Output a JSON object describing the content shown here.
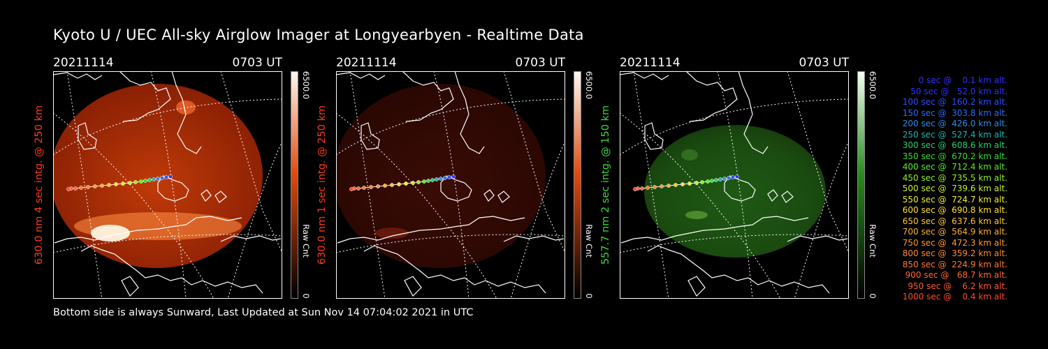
{
  "title": "Kyoto U / UEC All-sky Airglow Imager at Longyearbyen - Realtime Data",
  "footer": "Bottom side is always Sunward, Last Updated at Sun Nov 14 07:04:02 2021 in UTC",
  "panels": [
    {
      "date": "20211114",
      "time": "0703 UT",
      "ylabel": "630.0 nm 4 sec intg. @ 250 km",
      "ylabel_color": "#ff3a1a",
      "cbar_max": "6500.0",
      "cbar_label": "Raw Cnt",
      "cbar_min": "0",
      "tint": "red",
      "intensity": 0.85
    },
    {
      "date": "20211114",
      "time": "0703 UT",
      "ylabel": "630.0 nm 1 sec intg. @ 250 km",
      "ylabel_color": "#ff3a1a",
      "cbar_max": "6500.0",
      "cbar_label": "Raw Cnt",
      "cbar_min": "0",
      "tint": "red",
      "intensity": 0.25
    },
    {
      "date": "20211114",
      "time": "0703 UT",
      "ylabel": "557.7 nm 2 sec intg. @ 150 km",
      "ylabel_color": "#3cdc3c",
      "cbar_max": "6500.0",
      "cbar_label": "Raw Cnt",
      "cbar_min": "0",
      "tint": "green",
      "intensity": 0.5
    }
  ],
  "legend": [
    {
      "text": "   0 sec @    0.1 km alt.",
      "color": "#3030ff"
    },
    {
      "text": "  50 sec @   52.0 km alt.",
      "color": "#3030ff"
    },
    {
      "text": " 100 sec @  160.2 km alt.",
      "color": "#2d50ff"
    },
    {
      "text": " 150 sec @  303.8 km alt.",
      "color": "#2d6cff"
    },
    {
      "text": " 200 sec @  426.0 km alt.",
      "color": "#2c8ee8"
    },
    {
      "text": " 250 sec @  527.4 km alt.",
      "color": "#22b4b4"
    },
    {
      "text": " 300 sec @  608.6 km alt.",
      "color": "#22d070"
    },
    {
      "text": " 350 sec @  670.2 km alt.",
      "color": "#34e030"
    },
    {
      "text": " 400 sec @  712.4 km alt.",
      "color": "#52f028"
    },
    {
      "text": " 450 sec @  735.5 km alt.",
      "color": "#90f028"
    },
    {
      "text": " 500 sec @  739.6 km alt.",
      "color": "#c8f030"
    },
    {
      "text": " 550 sec @  724.7 km alt.",
      "color": "#f0f030"
    },
    {
      "text": " 600 sec @  690.8 km alt.",
      "color": "#ffe030"
    },
    {
      "text": " 650 sec @  637.6 km alt.",
      "color": "#ffc830"
    },
    {
      "text": " 700 sec @  564.9 km alt.",
      "color": "#ffb030"
    },
    {
      "text": " 750 sec @  472.3 km alt.",
      "color": "#ff9a30"
    },
    {
      "text": " 800 sec @  359.2 km alt.",
      "color": "#ff8a30"
    },
    {
      "text": " 850 sec @  224.9 km alt.",
      "color": "#ff7a30"
    },
    {
      "text": " 900 sec @   68.7 km alt.",
      "color": "#ff6a30"
    },
    {
      "text": " 950 sec @    6.2 km alt.",
      "color": "#ff5a30"
    },
    {
      "text": "1000 sec @    0.4 km alt.",
      "color": "#ff4a30"
    }
  ]
}
